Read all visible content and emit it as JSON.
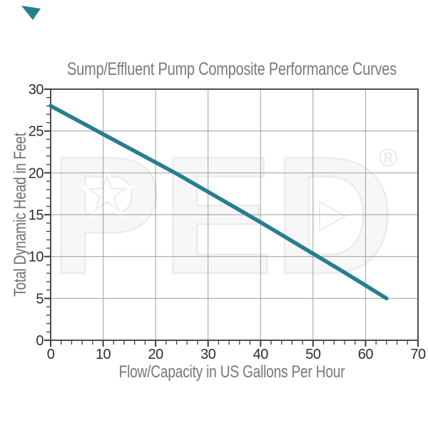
{
  "page": {
    "background": "#ffffff",
    "corner_accent_color": "#2a7f8e"
  },
  "watermark": {
    "text": "PED",
    "registered_symbol": "®",
    "fill_color": "#f7f7f7",
    "outline_color": "#ebebeb"
  },
  "chart_data": {
    "type": "line",
    "title": "Sump/Effluent Pump Composite Performance Curves",
    "xlabel": "Flow/Capacity in US Gallons Per Hour",
    "ylabel": "Total Dynamic Head in Feet",
    "xlim": [
      0,
      70
    ],
    "ylim": [
      0,
      30
    ],
    "x_ticks": [
      0,
      10,
      20,
      30,
      40,
      50,
      60,
      70
    ],
    "y_ticks": [
      0,
      5,
      10,
      15,
      20,
      25,
      30
    ],
    "x_minor_step": 2,
    "y_minor_step": 1,
    "grid": true,
    "legend": "none",
    "series": [
      {
        "name": "composite-performance-curve",
        "color": "#287e8f",
        "stroke_width": 5.5,
        "points": [
          [
            0,
            28
          ],
          [
            8,
            25.3
          ],
          [
            16,
            22.6
          ],
          [
            24,
            19.9
          ],
          [
            32,
            17.0
          ],
          [
            40,
            14.1
          ],
          [
            48,
            11.1
          ],
          [
            56,
            8.1
          ],
          [
            64,
            5
          ]
        ]
      }
    ],
    "styles": {
      "grid_color": "#9d9ea0",
      "border_color": "#4e4f51",
      "tick_color": "#3c3c3c",
      "tick_label_color": "#2d2e30",
      "title_color": "#7a7a7c"
    }
  }
}
